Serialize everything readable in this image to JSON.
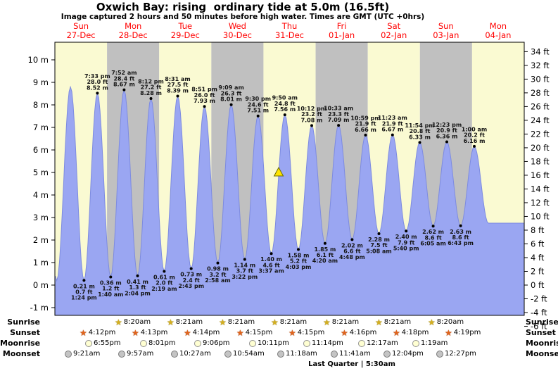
{
  "header": {
    "title": "Oxwich Bay: rising  ordinary tide at 5.0m (16.5ft)",
    "subtitle": "Image captured 2 hours and 50 minutes before high water. Times are GMT (UTC +0hrs)"
  },
  "colors": {
    "band_yellow": "#fafad2",
    "band_gray": "#c0c0c0",
    "tide_fill": "#9aa6f2",
    "tide_edge": "#7d8be0",
    "day_label_red": "#ff0000",
    "marker_yellow": "#ffe400",
    "marker_outline": "#6b6b00"
  },
  "chart_data": {
    "type": "area",
    "title": "Oxwich Bay: rising  ordinary tide at 5.0m (16.5ft)",
    "unit_left": "m",
    "unit_right": "ft",
    "left_ticks_m": [
      10,
      9,
      8,
      7,
      6,
      5,
      4,
      3,
      2,
      1,
      0,
      -1
    ],
    "right_ticks_ft": [
      34,
      32,
      30,
      28,
      26,
      24,
      22,
      20,
      18,
      16,
      14,
      12,
      10,
      8,
      6,
      4,
      2,
      0,
      -2,
      -4,
      -6
    ],
    "days": [
      {
        "name": "Sun",
        "date": "27-Dec",
        "shaded": false
      },
      {
        "name": "Mon",
        "date": "28-Dec",
        "shaded": true
      },
      {
        "name": "Tue",
        "date": "29-Dec",
        "shaded": false
      },
      {
        "name": "Wed",
        "date": "30-Dec",
        "shaded": true
      },
      {
        "name": "Thu",
        "date": "31-Dec",
        "shaded": false
      },
      {
        "name": "Fri",
        "date": "01-Jan",
        "shaded": true
      },
      {
        "name": "Sat",
        "date": "02-Jan",
        "shaded": false
      },
      {
        "name": "Sun",
        "date": "03-Jan",
        "shaded": true
      },
      {
        "name": "Mon",
        "date": "04-Jan",
        "shaded": false
      }
    ],
    "current_marker": {
      "day": 4,
      "time": "7:00 am",
      "height_m": 5.0
    },
    "extremes": [
      {
        "kind": "high",
        "day": -1,
        "time": "6:55 pm",
        "height_m": 8.4,
        "labeled": false
      },
      {
        "kind": "low",
        "day": 0,
        "time": "0:50 am",
        "height_m": 0.2,
        "labeled": false
      },
      {
        "kind": "high",
        "day": 0,
        "time": "7:10 am",
        "height_m": 8.8,
        "labeled": false
      },
      {
        "kind": "low",
        "day": 0,
        "time": "1:24 pm",
        "height_m": 0.21,
        "ft": "0.7",
        "labeled": true
      },
      {
        "kind": "high",
        "day": 0,
        "time": "7:33 pm",
        "height_m": 8.52,
        "ft": "28.0",
        "labeled": true
      },
      {
        "kind": "low",
        "day": 1,
        "time": "1:40 am",
        "height_m": 0.36,
        "ft": "1.2",
        "labeled": true
      },
      {
        "kind": "high",
        "day": 1,
        "time": "7:52 am",
        "height_m": 8.67,
        "ft": "28.4",
        "labeled": true
      },
      {
        "kind": "low",
        "day": 1,
        "time": "2:04 pm",
        "height_m": 0.41,
        "ft": "1.3",
        "labeled": true
      },
      {
        "kind": "high",
        "day": 1,
        "time": "8:12 pm",
        "height_m": 8.28,
        "ft": "27.2",
        "labeled": true
      },
      {
        "kind": "low",
        "day": 2,
        "time": "2:19 am",
        "height_m": 0.61,
        "ft": "2.0",
        "labeled": true
      },
      {
        "kind": "high",
        "day": 2,
        "time": "8:31 am",
        "height_m": 8.39,
        "ft": "27.5",
        "labeled": true
      },
      {
        "kind": "low",
        "day": 2,
        "time": "2:43 pm",
        "height_m": 0.73,
        "ft": "2.4",
        "labeled": true
      },
      {
        "kind": "high",
        "day": 2,
        "time": "8:51 pm",
        "height_m": 7.93,
        "ft": "26.0",
        "labeled": true
      },
      {
        "kind": "low",
        "day": 3,
        "time": "2:58 am",
        "height_m": 0.98,
        "ft": "3.2",
        "labeled": true
      },
      {
        "kind": "high",
        "day": 3,
        "time": "9:09 am",
        "height_m": 8.01,
        "ft": "26.3",
        "labeled": true
      },
      {
        "kind": "low",
        "day": 3,
        "time": "3:22 pm",
        "height_m": 1.14,
        "ft": "3.7",
        "labeled": true
      },
      {
        "kind": "high",
        "day": 3,
        "time": "9:30 pm",
        "height_m": 7.51,
        "ft": "24.6",
        "labeled": true
      },
      {
        "kind": "low",
        "day": 4,
        "time": "3:37 am",
        "height_m": 1.4,
        "ft": "4.6",
        "labeled": true
      },
      {
        "kind": "high",
        "day": 4,
        "time": "9:50 am",
        "height_m": 7.56,
        "ft": "24.8",
        "labeled": true
      },
      {
        "kind": "low",
        "day": 4,
        "time": "4:03 pm",
        "height_m": 1.58,
        "ft": "5.2",
        "labeled": true
      },
      {
        "kind": "high",
        "day": 4,
        "time": "10:12 pm",
        "height_m": 7.08,
        "ft": "23.2",
        "labeled": true
      },
      {
        "kind": "low",
        "day": 5,
        "time": "4:20 am",
        "height_m": 1.85,
        "ft": "6.1",
        "labeled": true
      },
      {
        "kind": "high",
        "day": 5,
        "time": "10:33 am",
        "height_m": 7.09,
        "ft": "23.3",
        "labeled": true
      },
      {
        "kind": "low",
        "day": 5,
        "time": "4:48 pm",
        "height_m": 2.02,
        "ft": "6.6",
        "labeled": true
      },
      {
        "kind": "high",
        "day": 5,
        "time": "10:59 pm",
        "height_m": 6.66,
        "ft": "21.9",
        "labeled": true
      },
      {
        "kind": "low",
        "day": 6,
        "time": "5:08 am",
        "height_m": 2.28,
        "ft": "7.5",
        "labeled": true
      },
      {
        "kind": "high",
        "day": 6,
        "time": "11:23 am",
        "height_m": 6.67,
        "ft": "21.9",
        "labeled": true
      },
      {
        "kind": "low",
        "day": 6,
        "time": "5:40 pm",
        "height_m": 2.4,
        "ft": "7.9",
        "labeled": true
      },
      {
        "kind": "high",
        "day": 6,
        "time": "11:54 pm",
        "height_m": 6.33,
        "ft": "20.8",
        "labeled": true
      },
      {
        "kind": "low",
        "day": 7,
        "time": "6:05 am",
        "height_m": 2.62,
        "ft": "8.6",
        "labeled": true
      },
      {
        "kind": "high",
        "day": 7,
        "time": "12:23 pm",
        "height_m": 6.36,
        "ft": "20.9",
        "labeled": true
      },
      {
        "kind": "low",
        "day": 7,
        "time": "6:43 pm",
        "height_m": 2.63,
        "ft": "8.6",
        "labeled": true
      },
      {
        "kind": "high",
        "day": 8,
        "time": "1:00 am",
        "height_m": 6.16,
        "ft": "20.2",
        "labeled": true
      },
      {
        "kind": "low",
        "day": 8,
        "time": "7:30 am",
        "height_m": 2.75,
        "labeled": false
      },
      {
        "kind": "low",
        "day": 9,
        "time": "0:00 am",
        "height_m": 2.75,
        "labeled": false
      }
    ]
  },
  "almanac": {
    "rows": [
      {
        "label": "Sunrise",
        "icon": "sunrise-star",
        "events": [
          {
            "day": 1,
            "time": "8:20am"
          },
          {
            "day": 2,
            "time": "8:21am"
          },
          {
            "day": 3,
            "time": "8:21am"
          },
          {
            "day": 4,
            "time": "8:21am"
          },
          {
            "day": 5,
            "time": "8:21am"
          },
          {
            "day": 6,
            "time": "8:21am"
          },
          {
            "day": 7,
            "time": "8:20am"
          }
        ]
      },
      {
        "label": "Sunset",
        "icon": "sunset-star",
        "events": [
          {
            "day": 0,
            "time": "4:12pm"
          },
          {
            "day": 1,
            "time": "4:13pm"
          },
          {
            "day": 2,
            "time": "4:14pm"
          },
          {
            "day": 3,
            "time": "4:15pm"
          },
          {
            "day": 4,
            "time": "4:15pm"
          },
          {
            "day": 5,
            "time": "4:16pm"
          },
          {
            "day": 6,
            "time": "4:18pm"
          },
          {
            "day": 7,
            "time": "4:19pm"
          }
        ]
      },
      {
        "label": "Moonrise",
        "icon": "moonrise-moon",
        "events": [
          {
            "day": 0,
            "time": "6:55pm"
          },
          {
            "day": 1,
            "time": "8:01pm"
          },
          {
            "day": 2,
            "time": "9:06pm"
          },
          {
            "day": 3,
            "time": "10:11pm"
          },
          {
            "day": 4,
            "time": "11:14pm"
          },
          {
            "day": 6,
            "time": "12:17am"
          },
          {
            "day": 7,
            "time": "1:19am"
          }
        ]
      },
      {
        "label": "Moonset",
        "icon": "moonset-moon",
        "events": [
          {
            "day": 0,
            "time": "9:21am"
          },
          {
            "day": 1,
            "time": "9:57am"
          },
          {
            "day": 2,
            "time": "10:27am"
          },
          {
            "day": 3,
            "time": "10:54am"
          },
          {
            "day": 4,
            "time": "11:18am"
          },
          {
            "day": 5,
            "time": "11:41am"
          },
          {
            "day": 6,
            "time": "12:04pm"
          },
          {
            "day": 7,
            "time": "12:27pm"
          }
        ]
      }
    ],
    "footnote": "Last Quarter | 5:30am"
  }
}
